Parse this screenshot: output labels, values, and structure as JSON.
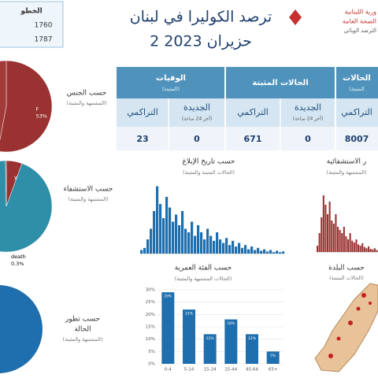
{
  "header": {
    "title": "ترصد الكوليرا في لبنان",
    "date": "2 حزيران 2023"
  },
  "logo": [
    "ورية اللبنانية",
    "الصحة العامة",
    "الترصد الوبائي"
  ],
  "side_box": {
    "title": "الخطو",
    "values": [
      "1760",
      "1787"
    ]
  },
  "table": {
    "groups": [
      {
        "title": "الوفيات",
        "note": "(المثبتة)"
      },
      {
        "title": "الحالات المثبتة",
        "note": null
      },
      {
        "title": "الحالات",
        "note": "(المثبتة"
      }
    ],
    "columns": [
      {
        "title": "التراكمي",
        "note": null
      },
      {
        "title": "الجديدة",
        "note": "(آخر 24 ساعة)"
      },
      {
        "title": "التراكمي",
        "note": null
      },
      {
        "title": "الجديدة",
        "note": "(آخر 24 ساعة)"
      },
      {
        "title": "التراكمي",
        "note": null
      }
    ],
    "values": [
      "23",
      "0",
      "671",
      "0",
      "8007"
    ]
  },
  "panels": [
    {
      "title": "حسب الجنس",
      "subtitle": "(المشتبهة والمثبتة)"
    },
    {
      "title": "حسب الاستشفاء",
      "subtitle": "(المشتبهة والمثبتة)"
    },
    {
      "title": "حسب تطور",
      "title2": "الحالة",
      "subtitle": "(المشتبهة والمثبتة)"
    },
    {
      "title": "حسب البلدة",
      "subtitle": "(الحالات المثبتة)"
    }
  ],
  "chart_data": [
    {
      "type": "pie",
      "categories": [
        "F",
        null
      ],
      "values": [
        53,
        47
      ],
      "value_labels": [
        "53%",
        null
      ],
      "colors": [
        "#9b3232",
        "#a33a3a"
      ]
    },
    {
      "type": "pie",
      "categories": [
        "yes",
        null,
        "death"
      ],
      "values": [
        5.6,
        94.1,
        0.3
      ],
      "value_labels": [
        "5.6%",
        null,
        "0.3%"
      ],
      "colors": [
        "#9b3232",
        "#2f8fa8",
        "#333333"
      ]
    },
    {
      "type": "bar",
      "title": "حسب الفئة العمرية",
      "subtitle": "(الحالات المشتبهة والمثبتة)",
      "categories": [
        "0-4",
        "5-14",
        "15-24",
        "25-44",
        "45-64",
        "65+"
      ],
      "values": [
        29,
        22,
        12,
        18,
        12,
        5
      ],
      "value_labels": [
        "29%",
        "22%",
        "12%",
        "18%",
        "12%",
        "5%"
      ],
      "color": "#1f6fae",
      "ylim": [
        0,
        30
      ],
      "yticks": [
        {
          "value": 0,
          "label": "0%"
        },
        {
          "value": 5,
          "label": "5%"
        },
        {
          "value": 10,
          "label": "10%"
        },
        {
          "value": 15,
          "label": "15%"
        },
        {
          "value": 20,
          "label": "20%"
        },
        {
          "value": 25,
          "label": "25%"
        },
        {
          "value": 30,
          "label": "30%"
        }
      ]
    },
    {
      "type": "timeline",
      "title": "حسب تاريخ الإبلاغ",
      "subtitle": "(الحالات المثبتة والمثبتة)",
      "color": "#1f6fae",
      "ylim": [
        0,
        100
      ],
      "values": [
        5,
        8,
        20,
        35,
        60,
        95,
        70,
        50,
        80,
        65,
        45,
        55,
        40,
        60,
        35,
        30,
        45,
        25,
        40,
        30,
        20,
        35,
        25,
        18,
        30,
        20,
        15,
        22,
        12,
        18,
        10,
        15,
        8,
        12,
        6,
        10,
        5,
        8,
        4,
        6,
        3,
        5,
        2,
        4,
        2,
        3
      ]
    },
    {
      "type": "timeline",
      "title": "ر الاستشفائية",
      "subtitle": "(المشتبهة والمثبتة)",
      "color": "#9b3232",
      "ylim": [
        0,
        100
      ],
      "values": [
        10,
        30,
        55,
        90,
        75,
        60,
        80,
        50,
        45,
        60,
        40,
        35,
        30,
        40,
        25,
        20,
        30,
        18,
        15,
        20,
        12,
        10,
        14,
        8,
        6,
        9,
        5,
        4,
        6,
        3
      ]
    }
  ]
}
